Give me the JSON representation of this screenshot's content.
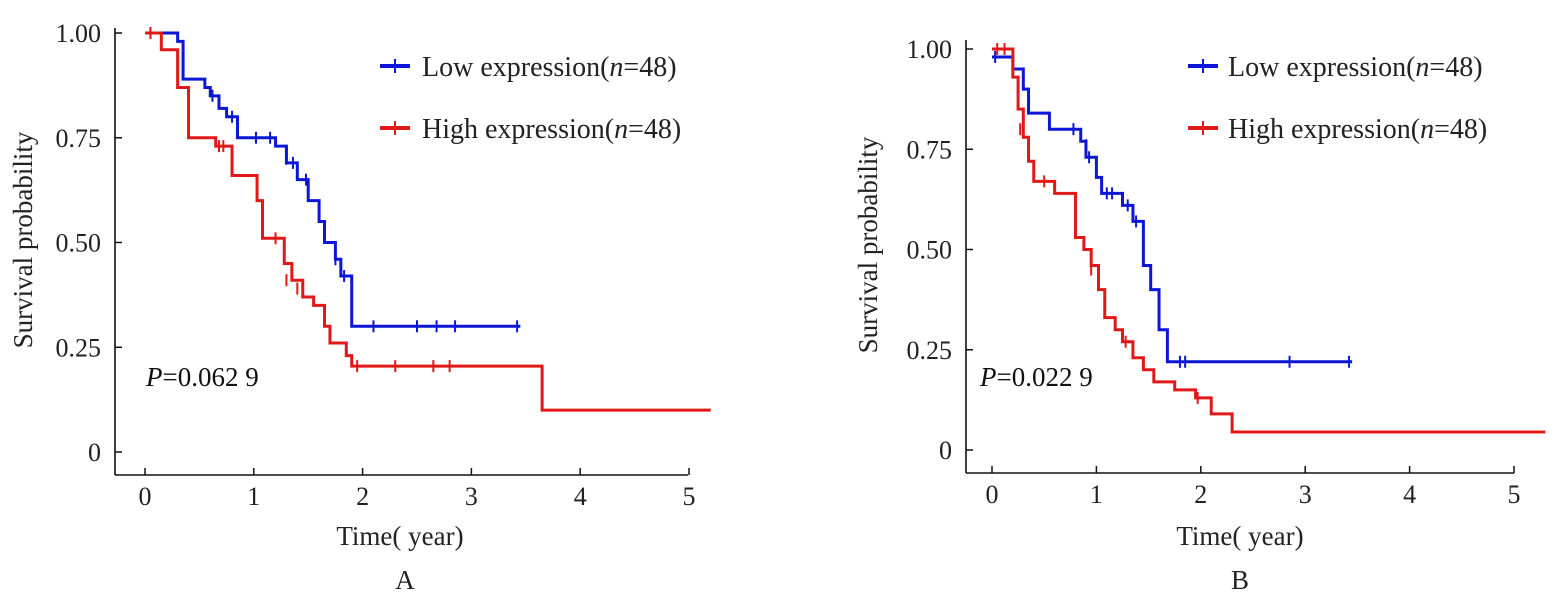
{
  "chart_data": [
    {
      "panel": "A",
      "type": "line",
      "xlabel": "Time( year)",
      "ylabel": "Survival probability",
      "xlim": [
        0,
        5
      ],
      "ylim": [
        0,
        1
      ],
      "xticks": [
        "0",
        "1",
        "2",
        "3",
        "4",
        "5"
      ],
      "yticks": [
        "0",
        "0.25",
        "0.50",
        "0.75",
        "1.00"
      ],
      "p_value": {
        "prefix": "P",
        "text": "=0.062 9"
      },
      "legend_position": "top-right",
      "series": [
        {
          "name": "Low expression(n=48)",
          "legend_main": "Low expression(",
          "legend_n": "n",
          "legend_tail": "=48)",
          "color": "#0b16d6",
          "points": [
            [
              0,
              1.0
            ],
            [
              0.3,
              0.98
            ],
            [
              0.35,
              0.89
            ],
            [
              0.55,
              0.87
            ],
            [
              0.6,
              0.85
            ],
            [
              0.68,
              0.82
            ],
            [
              0.75,
              0.8
            ],
            [
              0.85,
              0.75
            ],
            [
              1.2,
              0.73
            ],
            [
              1.3,
              0.69
            ],
            [
              1.4,
              0.65
            ],
            [
              1.5,
              0.6
            ],
            [
              1.6,
              0.55
            ],
            [
              1.65,
              0.5
            ],
            [
              1.75,
              0.46
            ],
            [
              1.8,
              0.42
            ],
            [
              1.9,
              0.3
            ],
            [
              3.45,
              0.3
            ]
          ],
          "censored": [
            [
              0.05,
              1.0
            ],
            [
              0.62,
              0.85
            ],
            [
              0.8,
              0.8
            ],
            [
              1.02,
              0.75
            ],
            [
              1.15,
              0.75
            ],
            [
              1.3,
              0.7
            ],
            [
              1.36,
              0.69
            ],
            [
              1.48,
              0.65
            ],
            [
              1.75,
              0.46
            ],
            [
              1.83,
              0.42
            ],
            [
              2.1,
              0.3
            ],
            [
              2.5,
              0.3
            ],
            [
              2.68,
              0.3
            ],
            [
              2.85,
              0.3
            ],
            [
              3.42,
              0.3
            ]
          ]
        },
        {
          "name": "High expression(n=48)",
          "legend_main": "High expression(",
          "legend_n": "n",
          "legend_tail": "=48)",
          "color": "#e01818",
          "points": [
            [
              0,
              1.0
            ],
            [
              0.15,
              0.96
            ],
            [
              0.3,
              0.87
            ],
            [
              0.4,
              0.75
            ],
            [
              0.65,
              0.73
            ],
            [
              0.8,
              0.66
            ],
            [
              1.03,
              0.6
            ],
            [
              1.08,
              0.51
            ],
            [
              1.2,
              0.51
            ],
            [
              1.28,
              0.45
            ],
            [
              1.35,
              0.41
            ],
            [
              1.45,
              0.37
            ],
            [
              1.55,
              0.35
            ],
            [
              1.65,
              0.3
            ],
            [
              1.7,
              0.26
            ],
            [
              1.85,
              0.23
            ],
            [
              1.9,
              0.205
            ],
            [
              3.65,
              0.205
            ],
            [
              3.65,
              0.1
            ],
            [
              5.2,
              0.1
            ]
          ],
          "censored": [
            [
              0.05,
              1.0
            ],
            [
              0.68,
              0.73
            ],
            [
              0.72,
              0.73
            ],
            [
              1.2,
              0.51
            ],
            [
              1.3,
              0.41
            ],
            [
              1.4,
              0.39
            ],
            [
              1.95,
              0.205
            ],
            [
              2.3,
              0.205
            ],
            [
              2.65,
              0.205
            ],
            [
              2.8,
              0.205
            ]
          ]
        }
      ]
    },
    {
      "panel": "B",
      "type": "line",
      "xlabel": "Time( year)",
      "ylabel": "Survival probability",
      "xlim": [
        0,
        5
      ],
      "ylim": [
        0,
        1
      ],
      "xticks": [
        "0",
        "1",
        "2",
        "3",
        "4",
        "5"
      ],
      "yticks": [
        "0",
        "0.25",
        "0.50",
        "0.75",
        "1.00"
      ],
      "p_value": {
        "prefix": "P",
        "text": "=0.022 9"
      },
      "legend_position": "top-right",
      "series": [
        {
          "name": "Low expression(n=48)",
          "legend_main": "Low expression(",
          "legend_n": "n",
          "legend_tail": "=48)",
          "color": "#0b16d6",
          "points": [
            [
              0,
              0.98
            ],
            [
              0.2,
              0.95
            ],
            [
              0.3,
              0.9
            ],
            [
              0.35,
              0.84
            ],
            [
              0.55,
              0.8
            ],
            [
              0.85,
              0.77
            ],
            [
              0.9,
              0.73
            ],
            [
              1.0,
              0.68
            ],
            [
              1.05,
              0.64
            ],
            [
              1.25,
              0.61
            ],
            [
              1.35,
              0.57
            ],
            [
              1.45,
              0.46
            ],
            [
              1.52,
              0.4
            ],
            [
              1.6,
              0.3
            ],
            [
              1.68,
              0.22
            ],
            [
              3.45,
              0.22
            ]
          ],
          "censored": [
            [
              0.03,
              0.98
            ],
            [
              0.78,
              0.8
            ],
            [
              0.9,
              0.76
            ],
            [
              0.93,
              0.73
            ],
            [
              1.1,
              0.64
            ],
            [
              1.15,
              0.64
            ],
            [
              1.3,
              0.61
            ],
            [
              1.38,
              0.57
            ],
            [
              1.45,
              0.55
            ],
            [
              1.8,
              0.22
            ],
            [
              1.85,
              0.22
            ],
            [
              2.85,
              0.22
            ],
            [
              3.42,
              0.22
            ]
          ]
        },
        {
          "name": "High expression(n=48)",
          "legend_main": "High expression(",
          "legend_n": "n",
          "legend_tail": "=48)",
          "color": "#e01818",
          "points": [
            [
              0,
              1.0
            ],
            [
              0.2,
              0.93
            ],
            [
              0.25,
              0.85
            ],
            [
              0.3,
              0.78
            ],
            [
              0.35,
              0.72
            ],
            [
              0.4,
              0.67
            ],
            [
              0.6,
              0.64
            ],
            [
              0.8,
              0.53
            ],
            [
              0.88,
              0.5
            ],
            [
              0.95,
              0.46
            ],
            [
              1.02,
              0.4
            ],
            [
              1.08,
              0.33
            ],
            [
              1.18,
              0.3
            ],
            [
              1.25,
              0.27
            ],
            [
              1.35,
              0.23
            ],
            [
              1.45,
              0.2
            ],
            [
              1.55,
              0.17
            ],
            [
              1.75,
              0.15
            ],
            [
              1.95,
              0.13
            ],
            [
              2.1,
              0.09
            ],
            [
              2.3,
              0.045
            ],
            [
              5.3,
              0.045
            ]
          ],
          "censored": [
            [
              0.05,
              1.0
            ],
            [
              0.12,
              1.0
            ],
            [
              0.27,
              0.8
            ],
            [
              0.5,
              0.67
            ],
            [
              0.95,
              0.45
            ],
            [
              1.08,
              0.36
            ],
            [
              1.28,
              0.27
            ],
            [
              1.97,
              0.13
            ]
          ]
        }
      ]
    }
  ]
}
